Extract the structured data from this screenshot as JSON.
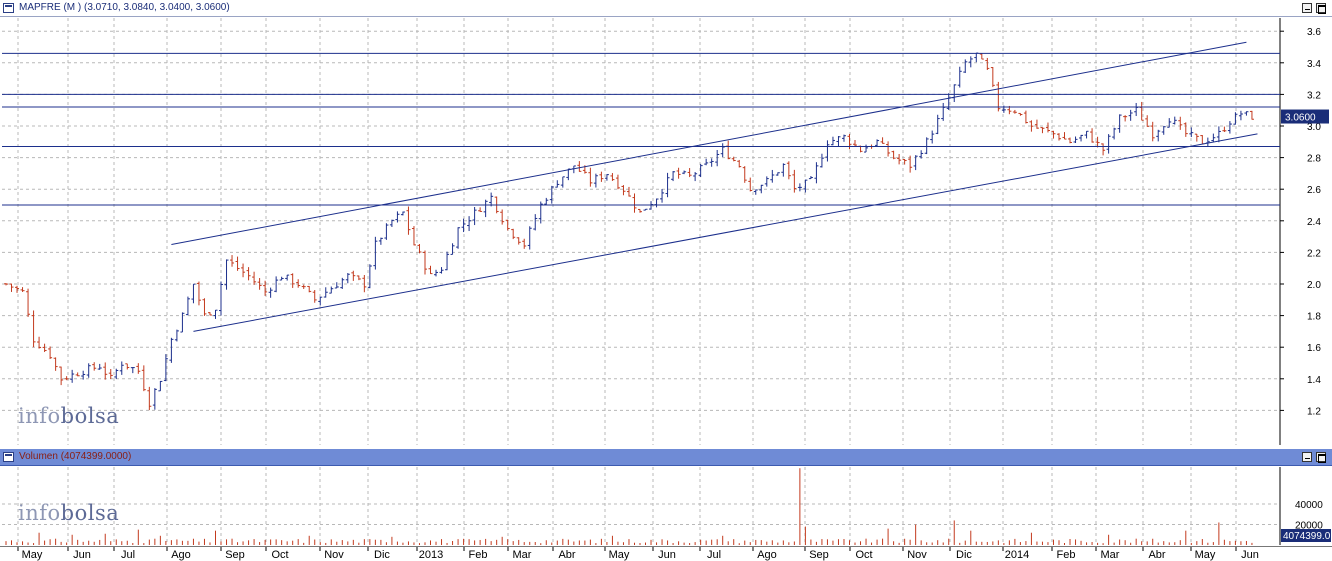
{
  "price_panel": {
    "title": "MAPFRE (M ) (3.0710, 3.0840, 3.0400, 3.0600)",
    "last_value_label": "3.0600",
    "watermark": {
      "part1": "info",
      "part2": "bolsa"
    }
  },
  "volume_panel": {
    "title": "Volumen (4074399.0000)",
    "last_value_label": "4074399.0",
    "watermark": {
      "part1": "info",
      "part2": "bolsa"
    }
  },
  "colors": {
    "up_bar": "#1c2f8c",
    "down_bar": "#c33a1e",
    "volume_bar": "#c33a1e",
    "trend_line": "#1c2f8c",
    "grid": "#b8b8b8",
    "last_label_bg": "#1a2d78"
  },
  "chart_data": [
    {
      "type": "bar",
      "subtype": "ohlc",
      "title": "MAPFRE (M ) (3.0710, 3.0840, 3.0400, 3.0600)",
      "ylim": [
        1.0,
        3.7
      ],
      "y_ticks": [
        1.2,
        1.4,
        1.6,
        1.8,
        2.0,
        2.2,
        2.4,
        2.6,
        2.8,
        3.0,
        3.2,
        3.4,
        3.6
      ],
      "y_tick_labels": [
        "1.2",
        "1.4",
        "1.6",
        "1.8",
        "2.0",
        "2.2",
        "2.4",
        "2.6",
        "2.8",
        "3.0",
        "3.2",
        "3.4",
        "3.6"
      ],
      "x_labels": [
        "May",
        "Jun",
        "Jul",
        "Ago",
        "Sep",
        "Oct",
        "Nov",
        "Dic",
        "2013",
        "Feb",
        "Mar",
        "Abr",
        "May",
        "Jun",
        "Jul",
        "Ago",
        "Sep",
        "Oct",
        "Nov",
        "Dic",
        "2014",
        "Feb",
        "Mar",
        "Abr",
        "May",
        "Jun"
      ],
      "grid": true,
      "price_path": [
        [
          0,
          2.0
        ],
        [
          3,
          1.95
        ],
        [
          5,
          1.65
        ],
        [
          8,
          1.55
        ],
        [
          10,
          1.4
        ],
        [
          14,
          1.45
        ],
        [
          17,
          1.48
        ],
        [
          19,
          1.4
        ],
        [
          21,
          1.5
        ],
        [
          24,
          1.45
        ],
        [
          26,
          1.25
        ],
        [
          28,
          1.4
        ],
        [
          30,
          1.65
        ],
        [
          32,
          1.8
        ],
        [
          34,
          2.0
        ],
        [
          36,
          1.8
        ],
        [
          38,
          1.85
        ],
        [
          40,
          2.15
        ],
        [
          42,
          2.1
        ],
        [
          44,
          2.05
        ],
        [
          47,
          1.95
        ],
        [
          50,
          2.05
        ],
        [
          53,
          2.0
        ],
        [
          56,
          1.9
        ],
        [
          58,
          1.95
        ],
        [
          62,
          2.05
        ],
        [
          65,
          2.0
        ],
        [
          67,
          2.25
        ],
        [
          70,
          2.4
        ],
        [
          72,
          2.45
        ],
        [
          74,
          2.25
        ],
        [
          77,
          2.05
        ],
        [
          79,
          2.1
        ],
        [
          82,
          2.35
        ],
        [
          85,
          2.45
        ],
        [
          88,
          2.55
        ],
        [
          91,
          2.35
        ],
        [
          94,
          2.25
        ],
        [
          97,
          2.5
        ],
        [
          100,
          2.65
        ],
        [
          103,
          2.75
        ],
        [
          106,
          2.65
        ],
        [
          109,
          2.7
        ],
        [
          112,
          2.6
        ],
        [
          115,
          2.45
        ],
        [
          118,
          2.55
        ],
        [
          121,
          2.7
        ],
        [
          124,
          2.68
        ],
        [
          127,
          2.75
        ],
        [
          130,
          2.85
        ],
        [
          133,
          2.75
        ],
        [
          135,
          2.6
        ],
        [
          138,
          2.65
        ],
        [
          141,
          2.75
        ],
        [
          143,
          2.6
        ],
        [
          146,
          2.65
        ],
        [
          149,
          2.9
        ],
        [
          152,
          2.93
        ],
        [
          155,
          2.85
        ],
        [
          158,
          2.9
        ],
        [
          161,
          2.8
        ],
        [
          164,
          2.75
        ],
        [
          167,
          2.9
        ],
        [
          170,
          3.1
        ],
        [
          172,
          3.25
        ],
        [
          174,
          3.4
        ],
        [
          176,
          3.45
        ],
        [
          178,
          3.35
        ],
        [
          180,
          3.12
        ],
        [
          183,
          3.1
        ],
        [
          186,
          3.0
        ],
        [
          190,
          2.95
        ],
        [
          193,
          2.9
        ],
        [
          196,
          2.95
        ],
        [
          199,
          2.85
        ],
        [
          202,
          3.05
        ],
        [
          205,
          3.1
        ],
        [
          208,
          2.95
        ],
        [
          211,
          3.05
        ],
        [
          214,
          2.95
        ],
        [
          217,
          2.9
        ],
        [
          220,
          2.95
        ],
        [
          222,
          3.03
        ],
        [
          224,
          3.08
        ],
        [
          226,
          3.06
        ]
      ],
      "horizontal_levels": [
        3.46,
        3.2,
        3.12,
        2.87,
        2.5
      ],
      "trend_lines": [
        {
          "from": [
            30,
            2.25
          ],
          "to": [
            225,
            3.53
          ]
        },
        {
          "from": [
            34,
            1.7
          ],
          "to": [
            227,
            2.95
          ]
        }
      ],
      "last_value": 3.06
    },
    {
      "type": "bar",
      "title": "Volumen (4074399.0000)",
      "ylim": [
        0,
        80000
      ],
      "y_ticks": [
        20000,
        40000
      ],
      "y_tick_labels": [
        "20000",
        "40000"
      ],
      "last_value": 4074399.0,
      "typical_volume": 5000,
      "spikes": [
        [
          6,
          12000
        ],
        [
          12,
          10000
        ],
        [
          18,
          11000
        ],
        [
          24,
          15000
        ],
        [
          28,
          9000
        ],
        [
          38,
          14000
        ],
        [
          55,
          9000
        ],
        [
          70,
          8000
        ],
        [
          90,
          8000
        ],
        [
          110,
          9000
        ],
        [
          130,
          9000
        ],
        [
          144,
          75000
        ],
        [
          145,
          18000
        ],
        [
          160,
          16000
        ],
        [
          165,
          20000
        ],
        [
          172,
          24000
        ],
        [
          175,
          14000
        ],
        [
          186,
          12000
        ],
        [
          200,
          10000
        ],
        [
          214,
          14000
        ],
        [
          220,
          22000
        ]
      ]
    }
  ]
}
